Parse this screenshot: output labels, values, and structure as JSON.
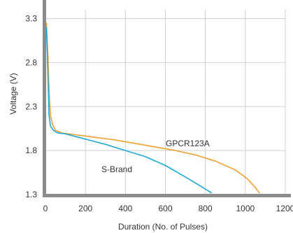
{
  "chart_data": {
    "type": "line",
    "title": "",
    "xlabel": "Duration (No. of Pulses)",
    "ylabel": "Voltage (V)",
    "xlim": [
      0,
      1200
    ],
    "ylim": [
      1.3,
      3.4
    ],
    "xticks": [
      "0",
      "200",
      "400",
      "600",
      "800",
      "1000",
      "1200"
    ],
    "yticks": [
      "1.3",
      "1.8",
      "2.3",
      "2.8",
      "3.3"
    ],
    "grid": true,
    "legend": "none (series labeled directly on chart)",
    "series": [
      {
        "name": "GPCR123A",
        "color": "#f0a030",
        "points": [
          [
            5,
            3.25
          ],
          [
            12,
            2.9
          ],
          [
            18,
            2.5
          ],
          [
            25,
            2.2
          ],
          [
            35,
            2.1
          ],
          [
            50,
            2.03
          ],
          [
            80,
            2.0
          ],
          [
            150,
            1.98
          ],
          [
            250,
            1.95
          ],
          [
            350,
            1.92
          ],
          [
            450,
            1.88
          ],
          [
            550,
            1.84
          ],
          [
            650,
            1.8
          ],
          [
            750,
            1.75
          ],
          [
            850,
            1.68
          ],
          [
            950,
            1.58
          ],
          [
            1010,
            1.48
          ],
          [
            1050,
            1.38
          ],
          [
            1070,
            1.32
          ]
        ]
      },
      {
        "name": "S-Brand",
        "color": "#20a8d8",
        "points": [
          [
            5,
            3.2
          ],
          [
            12,
            2.7
          ],
          [
            18,
            2.2
          ],
          [
            25,
            2.08
          ],
          [
            40,
            2.03
          ],
          [
            60,
            2.0
          ],
          [
            100,
            1.99
          ],
          [
            200,
            1.93
          ],
          [
            300,
            1.87
          ],
          [
            400,
            1.8
          ],
          [
            500,
            1.73
          ],
          [
            600,
            1.63
          ],
          [
            700,
            1.5
          ],
          [
            780,
            1.39
          ],
          [
            830,
            1.32
          ]
        ]
      }
    ]
  }
}
